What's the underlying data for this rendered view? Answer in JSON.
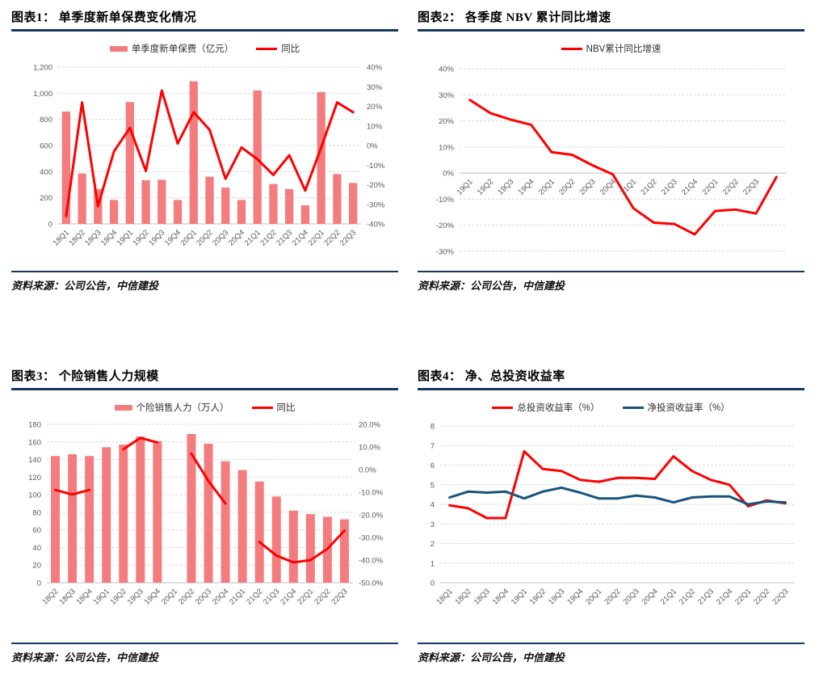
{
  "colors": {
    "bar": "#F47C7E",
    "red_line": "#FE0000",
    "navy_line": "#17537E",
    "rule": "#17375E",
    "grid": "#D9D9D9",
    "axis_line": "#BFBFBF",
    "axis_text": "#595959",
    "legend_text": "#303030"
  },
  "panels": [
    {
      "title": "图表1： 单季度新单保费变化情况",
      "source": "资料来源：公司公告，中信建投"
    },
    {
      "title": "图表2： 各季度 NBV 累计同比增速",
      "source": "资料来源：公司公告，中信建投"
    },
    {
      "title": "图表3： 个险销售人力规模",
      "source": "资料来源：公司公告，中信建投"
    },
    {
      "title": "图表4： 净、总投资收益率",
      "source": "资料来源：公司公告，中信建投"
    }
  ],
  "chart_data": [
    {
      "type": "bar",
      "title": "图表1： 单季度新单保费变化情况",
      "categories": [
        "18Q1",
        "18Q2",
        "18Q3",
        "18Q4",
        "19Q1",
        "19Q2",
        "19Q3",
        "19Q4",
        "20Q1",
        "20Q2",
        "20Q3",
        "20Q4",
        "21Q1",
        "21Q2",
        "21Q3",
        "21Q4",
        "22Q1",
        "22Q2",
        "22Q3"
      ],
      "series": [
        {
          "name": "单季度新单保费（亿元）",
          "type": "bar",
          "axis": "left",
          "color": "#F47C7E",
          "values": [
            860,
            386,
            266,
            183,
            932,
            334,
            338,
            183,
            1091,
            361,
            278,
            183,
            1021,
            305,
            266,
            142,
            1008,
            381,
            313
          ]
        },
        {
          "name": "同比",
          "type": "line",
          "axis": "right",
          "color": "#FE0000",
          "values": [
            -36,
            22,
            -31,
            -3,
            9,
            -13,
            28,
            1,
            17,
            8,
            -17,
            -1,
            -7,
            -15,
            -5,
            -23,
            -1,
            22,
            17
          ]
        }
      ],
      "left_axis": {
        "min": 0,
        "max": 1200,
        "step": 200,
        "format": "comma"
      },
      "right_axis": {
        "min": -40,
        "max": 40,
        "step": 10,
        "format": "percent"
      },
      "grid": true,
      "legend_position": "top",
      "x_labels_rotated": true
    },
    {
      "type": "line",
      "title": "图表2： 各季度 NBV 累计同比增速",
      "categories": [
        "19Q1",
        "19Q2",
        "19Q3",
        "19Q4",
        "20Q1",
        "20Q2",
        "20Q3",
        "20Q4",
        "21Q1",
        "21Q2",
        "21Q3",
        "21Q4",
        "22Q1",
        "22Q2",
        "22Q3",
        ""
      ],
      "series": [
        {
          "name": "NBV累计同比增速",
          "type": "line",
          "axis": "left",
          "color": "#FE0000",
          "values": [
            28,
            23,
            20.5,
            18.5,
            8,
            7,
            3,
            -0.5,
            -13.5,
            -19,
            -19.5,
            -23.5,
            -14.5,
            -14,
            -15.5,
            -1.5
          ]
        }
      ],
      "left_axis": {
        "min": -30,
        "max": 40,
        "step": 10,
        "format": "percent"
      },
      "grid": true,
      "legend_position": "top",
      "x_labels_rotated": true,
      "x_axis_at_zero": true
    },
    {
      "type": "bar",
      "title": "图表3： 个险销售人力规模",
      "categories": [
        "18Q2",
        "18Q3",
        "18Q4",
        "19Q1",
        "19Q2",
        "19Q3",
        "19Q4",
        "20Q1",
        "20Q2",
        "20Q3",
        "20Q4",
        "21Q1",
        "21Q2",
        "21Q3",
        "21Q4",
        "22Q1",
        "22Q2",
        "22Q3"
      ],
      "series": [
        {
          "name": "个险销售人力（万人）",
          "type": "bar",
          "axis": "left",
          "color": "#F47C7E",
          "values": [
            144,
            146,
            144,
            154,
            157,
            166,
            161,
            null,
            169,
            158,
            138,
            128,
            115,
            98,
            82,
            78,
            75,
            72
          ]
        },
        {
          "name": "同比",
          "type": "line",
          "axis": "right",
          "color": "#FE0000",
          "values": [
            -9,
            -11,
            -9,
            null,
            9,
            14,
            12,
            null,
            7,
            -5,
            -15,
            null,
            -32,
            -38,
            -41,
            -40,
            -35,
            -27
          ]
        }
      ],
      "left_axis": {
        "min": 0,
        "max": 180,
        "step": 20,
        "format": "int"
      },
      "right_axis": {
        "min": -50,
        "max": 20,
        "step": 10,
        "format": "percent1"
      },
      "grid": true,
      "legend_position": "top",
      "x_labels_rotated": true
    },
    {
      "type": "line",
      "title": "图表4： 净、总投资收益率",
      "categories": [
        "18Q1",
        "18Q2",
        "18Q3",
        "18Q4",
        "19Q1",
        "19Q2",
        "19Q3",
        "19Q4",
        "20Q1",
        "20Q2",
        "20Q3",
        "20Q4",
        "21Q1",
        "21Q2",
        "21Q3",
        "21Q4",
        "22Q1",
        "22Q2",
        "22Q3"
      ],
      "series": [
        {
          "name": "总投资收益率（%）",
          "type": "line",
          "axis": "left",
          "color": "#FE0000",
          "values": [
            3.95,
            3.8,
            3.3,
            3.3,
            6.7,
            5.8,
            5.7,
            5.25,
            5.15,
            5.35,
            5.35,
            5.3,
            6.45,
            5.7,
            5.25,
            5.0,
            3.9,
            4.2,
            4.05
          ]
        },
        {
          "name": "净投资收益率（%）",
          "type": "line",
          "axis": "left",
          "color": "#17537E",
          "values": [
            4.35,
            4.65,
            4.6,
            4.65,
            4.3,
            4.65,
            4.85,
            4.6,
            4.3,
            4.3,
            4.45,
            4.35,
            4.1,
            4.35,
            4.4,
            4.4,
            4.0,
            4.15,
            4.1
          ]
        }
      ],
      "left_axis": {
        "min": 0,
        "max": 8,
        "step": 1,
        "format": "int"
      },
      "grid": true,
      "legend_position": "top",
      "x_labels_rotated": true
    }
  ]
}
